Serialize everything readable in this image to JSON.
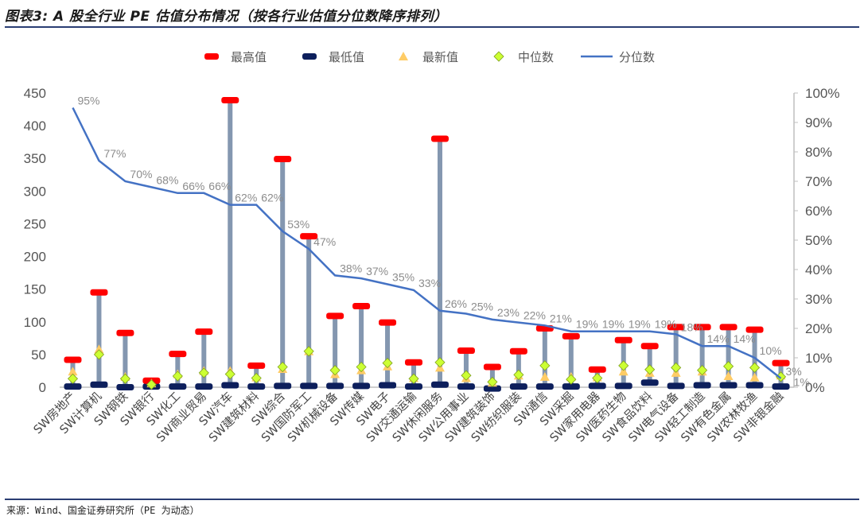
{
  "header": {
    "title": "图表3: A 股全行业 PE 估值分布情况（按各行业估值分位数降序排列）"
  },
  "footer": {
    "source": "来源：Wind、国金证券研究所（PE 为动态）"
  },
  "chart_data": {
    "type": "bar",
    "categories": [
      "SW房地产",
      "SW计算机",
      "SW钢铁",
      "SW银行",
      "SW化工",
      "SW商业贸易",
      "SW汽车",
      "SW建筑材料",
      "SW综合",
      "SW国防军工",
      "SW机械设备",
      "SW传媒",
      "SW电子",
      "SW交通运输",
      "SW休闲服务",
      "SW公用事业",
      "SW建筑装饰",
      "SW纺织服装",
      "SW通信",
      "SW采掘",
      "SW家用电器",
      "SW医药生物",
      "SW食品饮料",
      "SW电气设备",
      "SW轻工制造",
      "SW有色金属",
      "SW农林牧渔",
      "SW非银金融"
    ],
    "series": [
      {
        "name": "最高值",
        "axis": "left",
        "color": "#ff0000",
        "values": [
          42,
          145,
          83,
          10,
          51,
          85,
          439,
          33,
          349,
          231,
          109,
          124,
          99,
          38,
          380,
          56,
          31,
          55,
          90,
          78,
          27,
          72,
          63,
          92,
          92,
          92,
          88,
          37
        ]
      },
      {
        "name": "最低值",
        "axis": "left",
        "color": "#0d1f5c",
        "values": [
          1,
          4,
          0,
          1,
          1,
          1,
          3,
          1,
          2,
          2,
          2,
          2,
          3,
          1,
          4,
          1,
          -2,
          1,
          1,
          1,
          2,
          2,
          7,
          2,
          3,
          3,
          3,
          1
        ]
      },
      {
        "name": "最新值",
        "axis": "left",
        "color": "#ffcc66",
        "values": [
          24,
          58,
          16,
          6,
          20,
          25,
          25,
          15,
          28,
          55,
          20,
          26,
          32,
          14,
          30,
          14,
          7,
          18,
          16,
          16,
          15,
          24,
          22,
          22,
          24,
          17,
          15,
          18
        ]
      },
      {
        "name": "中位数",
        "axis": "left",
        "color": "#ccff33",
        "values": [
          13,
          50,
          13,
          4,
          17,
          22,
          20,
          14,
          31,
          55,
          26,
          31,
          37,
          13,
          38,
          18,
          8,
          19,
          33,
          12,
          14,
          33,
          27,
          30,
          26,
          32,
          30,
          16
        ]
      },
      {
        "name": "分位数",
        "axis": "right",
        "color": "#4472c4",
        "values": [
          95,
          77,
          70,
          68,
          66,
          66,
          62,
          62,
          53,
          47,
          38,
          37,
          35,
          33,
          26,
          25,
          23,
          22,
          21,
          19,
          19,
          19,
          19,
          18,
          14,
          14,
          10,
          3
        ]
      }
    ],
    "point_labels": [
      "95%",
      "77%",
      "70%",
      "68%",
      "66%",
      "66%",
      "62%",
      "62%",
      "53%",
      "47%",
      "38%",
      "37%",
      "35%",
      "33%",
      "26%",
      "25%",
      "23%",
      "22%",
      "21%",
      "19%",
      "19%",
      "19%",
      "19%",
      "18%",
      "14%",
      "14%",
      "10%",
      "3%"
    ],
    "extra_label": "1%",
    "left_axis": {
      "ylim": [
        0,
        450
      ],
      "ticks": [
        "0",
        "50",
        "100",
        "150",
        "200",
        "250",
        "300",
        "350",
        "400",
        "450"
      ]
    },
    "right_axis": {
      "ylim": [
        0,
        100
      ],
      "ticks": [
        "0%",
        "10%",
        "20%",
        "30%",
        "40%",
        "50%",
        "60%",
        "70%",
        "80%",
        "90%",
        "100%"
      ]
    },
    "xlabel": "",
    "ylabel": "",
    "legend_position": "top",
    "grid": false
  }
}
